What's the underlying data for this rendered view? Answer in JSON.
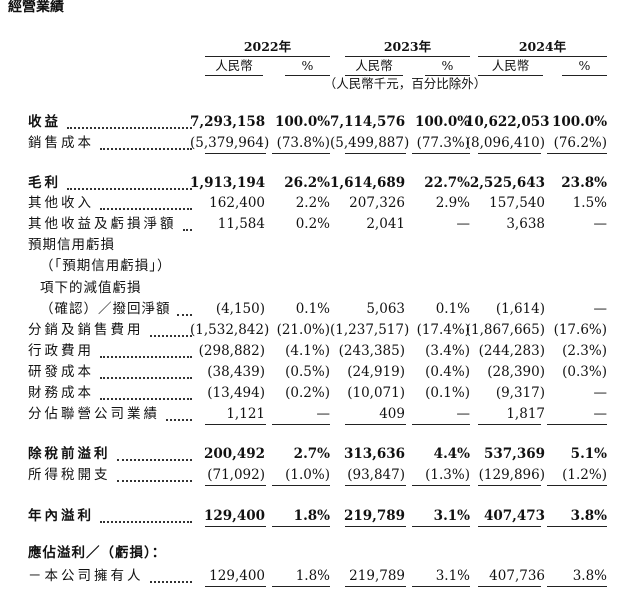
{
  "title": "經營業績",
  "years": [
    "2022年",
    "2023年",
    "2024年"
  ],
  "subheaders": [
    "人民幣",
    "%",
    "人民幣",
    "%",
    "人民幣",
    "%"
  ],
  "unit_note": "（人民幣千元，百分比除外）",
  "rows": [
    {
      "label": "收益",
      "bold": true,
      "cells": [
        "7,293,158",
        "100.0%",
        "7,114,576",
        "100.0%",
        "10,622,053",
        "100.0%"
      ]
    },
    {
      "label": "銷售成本",
      "underline": true,
      "cells": [
        "(5,379,964)",
        "(73.8%)",
        "(5,499,887)",
        "(77.3%)",
        "(8,096,410)",
        "(76.2%)"
      ]
    },
    {
      "label": "毛利",
      "bold": true,
      "cells": [
        "1,913,194",
        "26.2%",
        "1,614,689",
        "22.7%",
        "2,525,643",
        "23.8%"
      ]
    },
    {
      "label": "其他收入",
      "cells": [
        "162,400",
        "2.2%",
        "207,326",
        "2.9%",
        "157,540",
        "1.5%"
      ]
    },
    {
      "label": "其他收益及虧損淨額",
      "cells": [
        "11,584",
        "0.2%",
        "2,041",
        "—",
        "3,638",
        "—"
      ]
    },
    {
      "label": [
        "預期信用虧損",
        "（「預期信用虧損」）",
        "項下的減值虧損",
        "（確認）／撥回淨額"
      ],
      "cells": [
        "(4,150)",
        "0.1%",
        "5,063",
        "0.1%",
        "(1,614)",
        "—"
      ]
    },
    {
      "label": "分銷及銷售費用",
      "cells": [
        "(1,532,842)",
        "(21.0%)",
        "(1,237,517)",
        "(17.4%)",
        "(1,867,665)",
        "(17.6%)"
      ]
    },
    {
      "label": "行政費用",
      "cells": [
        "(298,882)",
        "(4.1%)",
        "(243,385)",
        "(3.4%)",
        "(244,283)",
        "(2.3%)"
      ]
    },
    {
      "label": "研發成本",
      "cells": [
        "(38,439)",
        "(0.5%)",
        "(24,919)",
        "(0.4%)",
        "(28,390)",
        "(0.3%)"
      ]
    },
    {
      "label": "財務成本",
      "cells": [
        "(13,494)",
        "(0.2%)",
        "(10,071)",
        "(0.1%)",
        "(9,317)",
        "—"
      ]
    },
    {
      "label": "分佔聯營公司業績",
      "underline": true,
      "cells": [
        "1,121",
        "—",
        "409",
        "—",
        "1,817",
        "—"
      ]
    },
    {
      "label": "除稅前溢利",
      "bold": true,
      "cells": [
        "200,492",
        "2.7%",
        "313,636",
        "4.4%",
        "537,369",
        "5.1%"
      ]
    },
    {
      "label": "所得稅開支",
      "underline": true,
      "cells": [
        "(71,092)",
        "(1.0%)",
        "(93,847)",
        "(1.3%)",
        "(129,896)",
        "(1.2%)"
      ]
    },
    {
      "label": "年內溢利",
      "bold": true,
      "underline": true,
      "cells": [
        "129,400",
        "1.8%",
        "219,789",
        "3.1%",
        "407,473",
        "3.8%"
      ]
    },
    {
      "label": "應佔溢利／（虧損）：",
      "bold": true
    },
    {
      "label": "－本公司擁有人",
      "underline": true,
      "cells": [
        "129,400",
        "1.8%",
        "219,789",
        "3.1%",
        "407,736",
        "3.8%"
      ]
    }
  ]
}
